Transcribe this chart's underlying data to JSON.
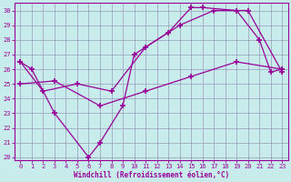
{
  "xlabel": "Windchill (Refroidissement éolien,°C)",
  "ylabel": "",
  "bg_color": "#c8ecec",
  "line_color": "#990099",
  "grid_color": "#9999bb",
  "xlim": [
    -0.5,
    23.5
  ],
  "ylim": [
    19.8,
    30.5
  ],
  "yticks": [
    20,
    21,
    22,
    23,
    24,
    25,
    26,
    27,
    28,
    29,
    30
  ],
  "xticks": [
    0,
    1,
    2,
    3,
    4,
    5,
    6,
    7,
    8,
    9,
    10,
    11,
    12,
    13,
    14,
    15,
    16,
    17,
    18,
    19,
    20,
    21,
    22,
    23
  ],
  "line1_x": [
    0,
    1,
    3,
    6,
    7,
    9,
    10,
    13,
    15,
    16,
    19,
    21,
    22,
    23
  ],
  "line1_y": [
    26.5,
    26.0,
    23.0,
    20.0,
    21.0,
    23.5,
    27.0,
    28.5,
    30.2,
    30.2,
    30.0,
    28.0,
    25.8,
    26.0
  ],
  "line2_x": [
    0,
    2,
    5,
    8,
    11,
    14,
    17,
    20,
    23
  ],
  "line2_y": [
    26.5,
    24.5,
    25.0,
    24.5,
    27.5,
    29.0,
    30.0,
    30.0,
    25.8
  ],
  "line3_x": [
    0,
    3,
    7,
    11,
    15,
    19,
    23
  ],
  "line3_y": [
    25.0,
    25.2,
    23.5,
    24.5,
    25.5,
    26.5,
    26.0
  ]
}
